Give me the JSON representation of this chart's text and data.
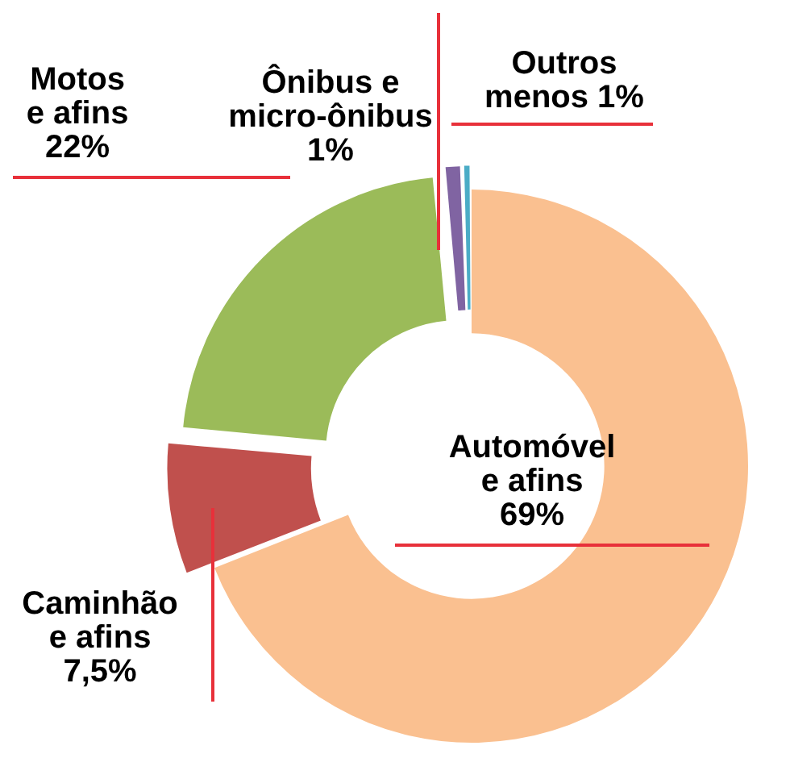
{
  "chart_data": {
    "type": "donut",
    "categories": [
      "Automóvel e afins",
      "Caminhão e afins",
      "Motos e afins",
      "Ônibus e micro-ônibus",
      "Outros"
    ],
    "values": [
      69,
      7.5,
      22,
      1,
      0.5
    ],
    "colors": [
      "#fac090",
      "#c0504d",
      "#9bbb59",
      "#8064a2",
      "#4bacc6"
    ],
    "value_labels": [
      "69%",
      "7,5%",
      "22%",
      "1%",
      "menos 1%"
    ],
    "legend": false
  }
}
